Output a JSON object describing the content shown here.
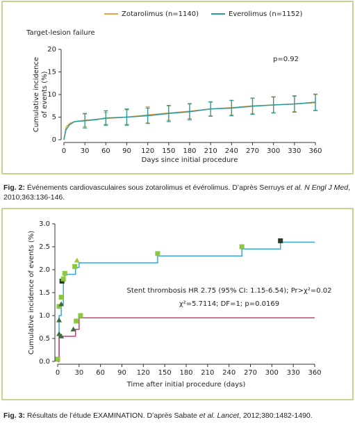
{
  "chart_data": [
    {
      "type": "line",
      "title": "Target-lesion failure",
      "ylabel": [
        "Cumulative incidence",
        "of events (%)"
      ],
      "xlabel": "Days since initial procedure",
      "annotation": "p=0.92",
      "xlim": [
        0,
        360
      ],
      "xticks": [
        0,
        30,
        60,
        90,
        120,
        150,
        180,
        210,
        240,
        270,
        300,
        330,
        360
      ],
      "ylim": [
        0,
        20
      ],
      "yticks": [
        0,
        5,
        10,
        15,
        20
      ],
      "legend": "top",
      "series": [
        {
          "name": "Zotarolimus (n=1140)",
          "color": "#e8a040",
          "x": [
            0,
            3,
            8,
            15,
            30,
            45,
            60,
            90,
            120,
            150,
            180,
            210,
            240,
            270,
            300,
            330,
            360
          ],
          "values": [
            0,
            2.8,
            3.6,
            4.0,
            4.3,
            4.5,
            4.7,
            5.0,
            5.5,
            5.9,
            6.3,
            6.8,
            7.1,
            7.5,
            7.7,
            7.9,
            8.2
          ],
          "errors": [
            null,
            null,
            null,
            null,
            1.4,
            null,
            1.3,
            1.6,
            1.8,
            1.6,
            1.6,
            1.5,
            1.6,
            1.7,
            1.7,
            1.7,
            1.8
          ]
        },
        {
          "name": "Everolimus (n=1152)",
          "color": "#2a9a9a",
          "x": [
            0,
            3,
            8,
            15,
            30,
            45,
            60,
            90,
            120,
            150,
            180,
            210,
            240,
            270,
            300,
            330,
            360
          ],
          "values": [
            0,
            2.2,
            3.3,
            4.0,
            4.2,
            4.4,
            4.8,
            5.0,
            5.3,
            5.8,
            6.2,
            6.8,
            7.0,
            7.4,
            7.7,
            7.9,
            8.3
          ],
          "errors": [
            null,
            null,
            null,
            null,
            1.6,
            null,
            1.6,
            1.8,
            1.7,
            1.8,
            1.8,
            1.6,
            1.7,
            1.8,
            1.8,
            1.8,
            1.8
          ]
        }
      ]
    },
    {
      "type": "line",
      "step": true,
      "ylabel": [
        "Cumulative incidence of events (%)"
      ],
      "xlabel": "Time after initial procedure (days)",
      "annotations": [
        "Stent thrombosis HR 2.75 (95% CI: 1.15-6.54); Pr>χ²=0.02",
        "χ²=5.7114; DF=1; p=0.0169"
      ],
      "xlim": [
        0,
        360
      ],
      "xticks": [
        0,
        30,
        60,
        90,
        120,
        150,
        180,
        210,
        240,
        270,
        300,
        330,
        360
      ],
      "ylim": [
        0,
        3
      ],
      "yticks": [
        {
          "value": 0,
          "label": "0.0"
        },
        0.5,
        {
          "value": 1,
          "label": "1.0"
        },
        1.5,
        {
          "value": 2,
          "label": "2.0"
        },
        2.5,
        {
          "value": 3,
          "label": "3.0"
        }
      ],
      "series": [
        {
          "color": "#3aa7d9",
          "x": [
            0,
            2,
            5,
            8,
            10,
            25,
            30,
            140,
            258,
            312,
            360
          ],
          "values": [
            0,
            1.0,
            1.25,
            1.75,
            1.9,
            2.05,
            2.15,
            2.3,
            2.45,
            2.6,
            2.6
          ]
        },
        {
          "color": "#d8377a",
          "x": [
            0,
            2,
            25,
            30,
            360
          ],
          "values": [
            0,
            0.55,
            0.7,
            0.95,
            0.95
          ]
        }
      ],
      "markers": [
        {
          "x": 0,
          "y": 0.05,
          "shape": "square",
          "color": "#8dc63f"
        },
        {
          "x": 2,
          "y": 1.2,
          "shape": "square",
          "color": "#8dc63f"
        },
        {
          "x": 5,
          "y": 1.4,
          "shape": "square",
          "color": "#8dc63f"
        },
        {
          "x": 6,
          "y": 1.75,
          "shape": "square",
          "color": "#2f3b2a"
        },
        {
          "x": 8,
          "y": 1.8,
          "shape": "square",
          "color": "#8dc63f"
        },
        {
          "x": 10,
          "y": 1.92,
          "shape": "square",
          "color": "#8dc63f"
        },
        {
          "x": 24,
          "y": 2.07,
          "shape": "square",
          "color": "#8dc63f"
        },
        {
          "x": 140,
          "y": 2.35,
          "shape": "square",
          "color": "#8dc63f"
        },
        {
          "x": 258,
          "y": 2.5,
          "shape": "square",
          "color": "#8dc63f"
        },
        {
          "x": 312,
          "y": 2.63,
          "shape": "square",
          "color": "#2f3b2a"
        },
        {
          "x": 27,
          "y": 2.2,
          "shape": "triangle",
          "color": "#9acd32"
        },
        {
          "x": 2,
          "y": 0.9,
          "shape": "triangle",
          "color": "#3d6b3a"
        },
        {
          "x": 5,
          "y": 1.25,
          "shape": "triangle",
          "color": "#3d6b3a"
        },
        {
          "x": 2,
          "y": 0.6,
          "shape": "triangle",
          "color": "#3d6b3a"
        },
        {
          "x": 5,
          "y": 0.55,
          "shape": "triangle",
          "color": "#3d6b3a"
        },
        {
          "x": 22,
          "y": 0.7,
          "shape": "triangle",
          "color": "#3d6b3a"
        },
        {
          "x": 26,
          "y": 0.88,
          "shape": "square",
          "color": "#8dc63f"
        },
        {
          "x": 32,
          "y": 1.0,
          "shape": "square",
          "color": "#8dc63f"
        }
      ]
    }
  ],
  "captions": [
    {
      "label": "Fig. 2:",
      "parts": [
        "Événements cardiovasculaires sous zotarolimus et évérolimus. D’après Serruys ",
        "et al. N Engl J Med",
        ","
      ],
      "line2": "2010;363:136-146."
    },
    {
      "label": "Fig. 3:",
      "parts": [
        "Résultats de l’étude EXAMINATION. D’après Sabate ",
        "et al. Lancet",
        ", 2012;380:1482-1490."
      ]
    }
  ]
}
